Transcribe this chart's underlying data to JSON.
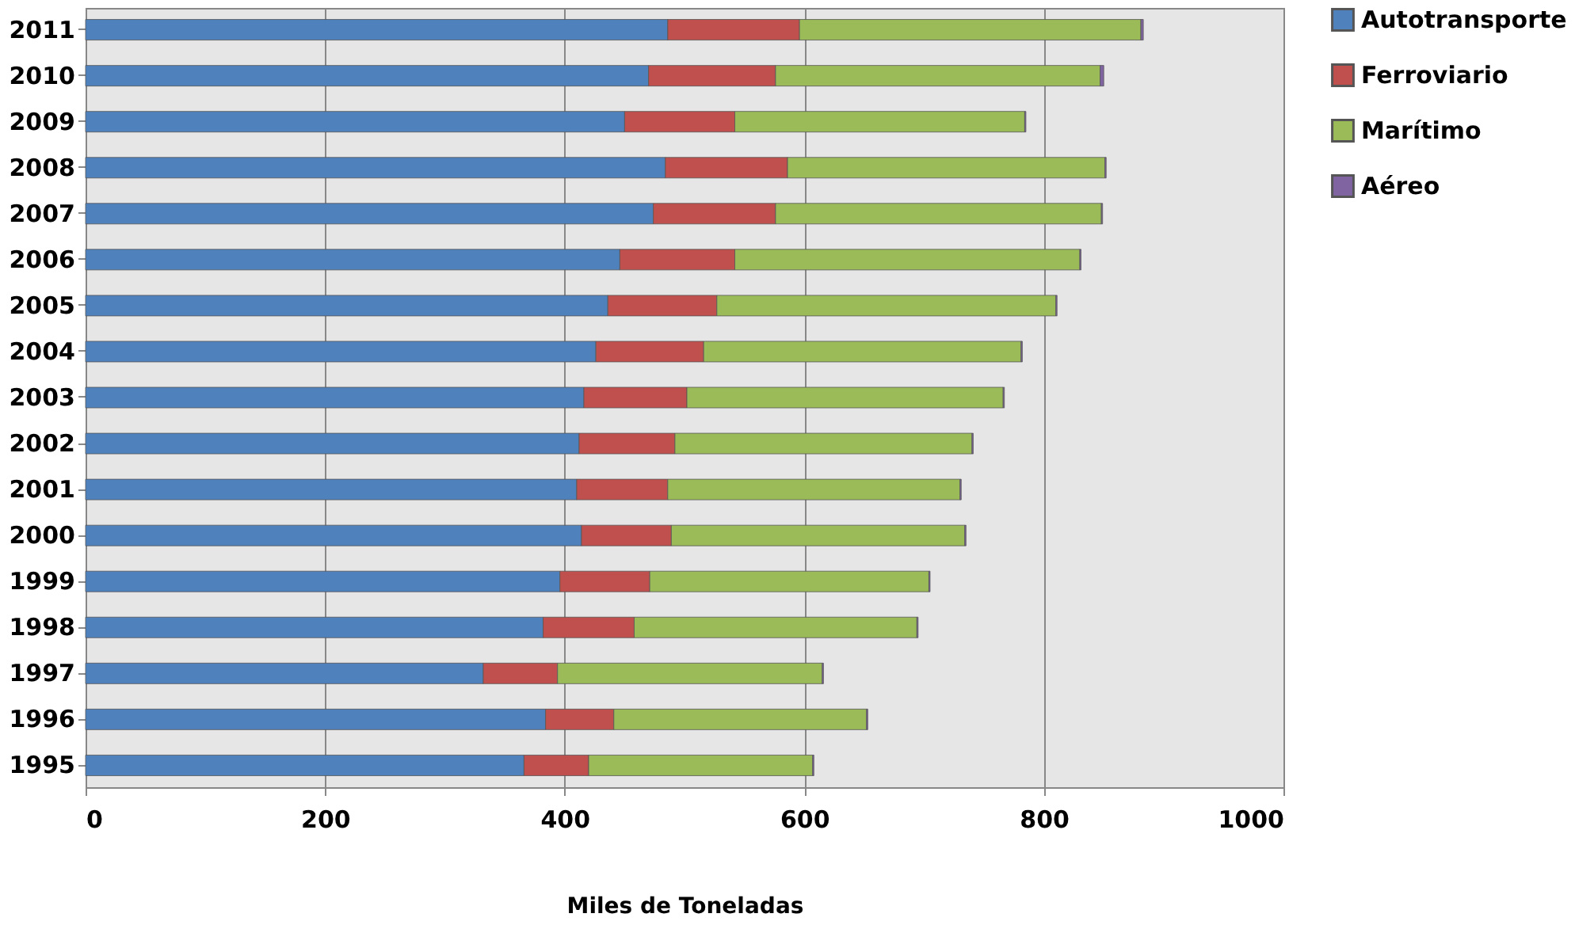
{
  "chart_data": {
    "type": "bar",
    "orientation": "horizontal",
    "stacked": true,
    "xlabel": "Miles de Toneladas",
    "categories": [
      "2011",
      "2010",
      "2009",
      "2008",
      "2007",
      "2006",
      "2005",
      "2004",
      "2003",
      "2002",
      "2001",
      "2000",
      "1999",
      "1998",
      "1997",
      "1996",
      "1995"
    ],
    "series": [
      {
        "name": "Autotransporte",
        "color": "#4f81bd",
        "values": [
          486,
          470,
          450,
          484,
          474,
          446,
          436,
          426,
          416,
          412,
          410,
          414,
          396,
          382,
          332,
          384,
          366
        ]
      },
      {
        "name": "Ferroviario",
        "color": "#c0504d",
        "values": [
          110,
          106,
          92,
          102,
          102,
          96,
          91,
          90,
          86,
          80,
          76,
          75,
          75,
          76,
          62,
          57,
          54
        ]
      },
      {
        "name": "Marítimo",
        "color": "#9bbb59",
        "values": [
          285,
          271,
          242,
          265,
          272,
          288,
          283,
          265,
          264,
          248,
          244,
          245,
          233,
          236,
          221,
          211,
          187
        ]
      },
      {
        "name": "Aéreo",
        "color": "#8064a2",
        "values": [
          2,
          3,
          1,
          1,
          1,
          1,
          1,
          1,
          1,
          1,
          1,
          1,
          1,
          1,
          1,
          1,
          1
        ]
      }
    ],
    "xlim": [
      0,
      1000
    ],
    "xticks": [
      0,
      200,
      400,
      600,
      800,
      1000
    ],
    "grid": "x",
    "legend": "right"
  }
}
